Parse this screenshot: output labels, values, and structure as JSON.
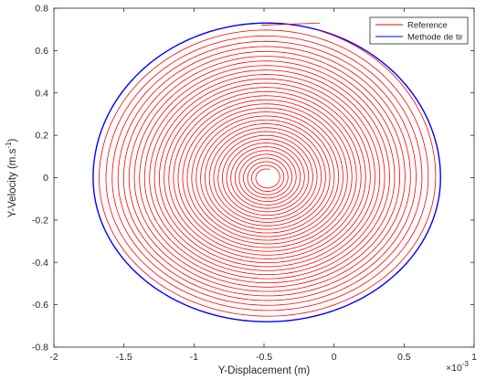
{
  "chart_data": {
    "type": "line",
    "xlabel": "Y-Displacement (m)",
    "ylabel_main": "Y-Velocity (m.s",
    "ylabel_exp": "-1",
    "ylabel_close": ")",
    "xmultiplier_base": "×10",
    "xmultiplier_exp": "-3",
    "xlim": [
      -2,
      1
    ],
    "ylim": [
      -0.8,
      0.8
    ],
    "grid": false,
    "legend_position": "top-right",
    "x_ticks": [
      -2,
      -1.5,
      -1,
      -0.5,
      0,
      0.5,
      1
    ],
    "x_tick_labels": [
      "-2",
      "-1.5",
      "-1",
      "-0.5",
      "0",
      "0.5",
      "1"
    ],
    "y_ticks": [
      -0.8,
      -0.6,
      -0.4,
      -0.2,
      0,
      0.2,
      0.4,
      0.6,
      0.8
    ],
    "y_tick_labels": [
      "-0.8",
      "-0.6",
      "-0.4",
      "-0.2",
      "0",
      "0.2",
      "0.4",
      "0.6",
      "0.8"
    ],
    "series": [
      {
        "name": "Reference",
        "color": "#ff0000",
        "style": "inward spiral of damped oscillation",
        "start": [
          -0.1,
          0.73
        ],
        "center": [
          -0.48,
          0.0
        ],
        "outer_x_range": [
          -1.72,
          0.74
        ],
        "outer_y_range": [
          -0.67,
          0.73
        ],
        "inner_x_range": [
          -0.55,
          -0.41
        ],
        "inner_y_range": [
          -0.04,
          0.04
        ],
        "turns": 34
      },
      {
        "name": "Methode de tir",
        "color": "#0000ff",
        "style": "closed orbit",
        "center": [
          -0.48,
          0.0
        ],
        "x_range": [
          -1.72,
          0.76
        ],
        "y_range": [
          -0.68,
          0.73
        ]
      }
    ]
  }
}
